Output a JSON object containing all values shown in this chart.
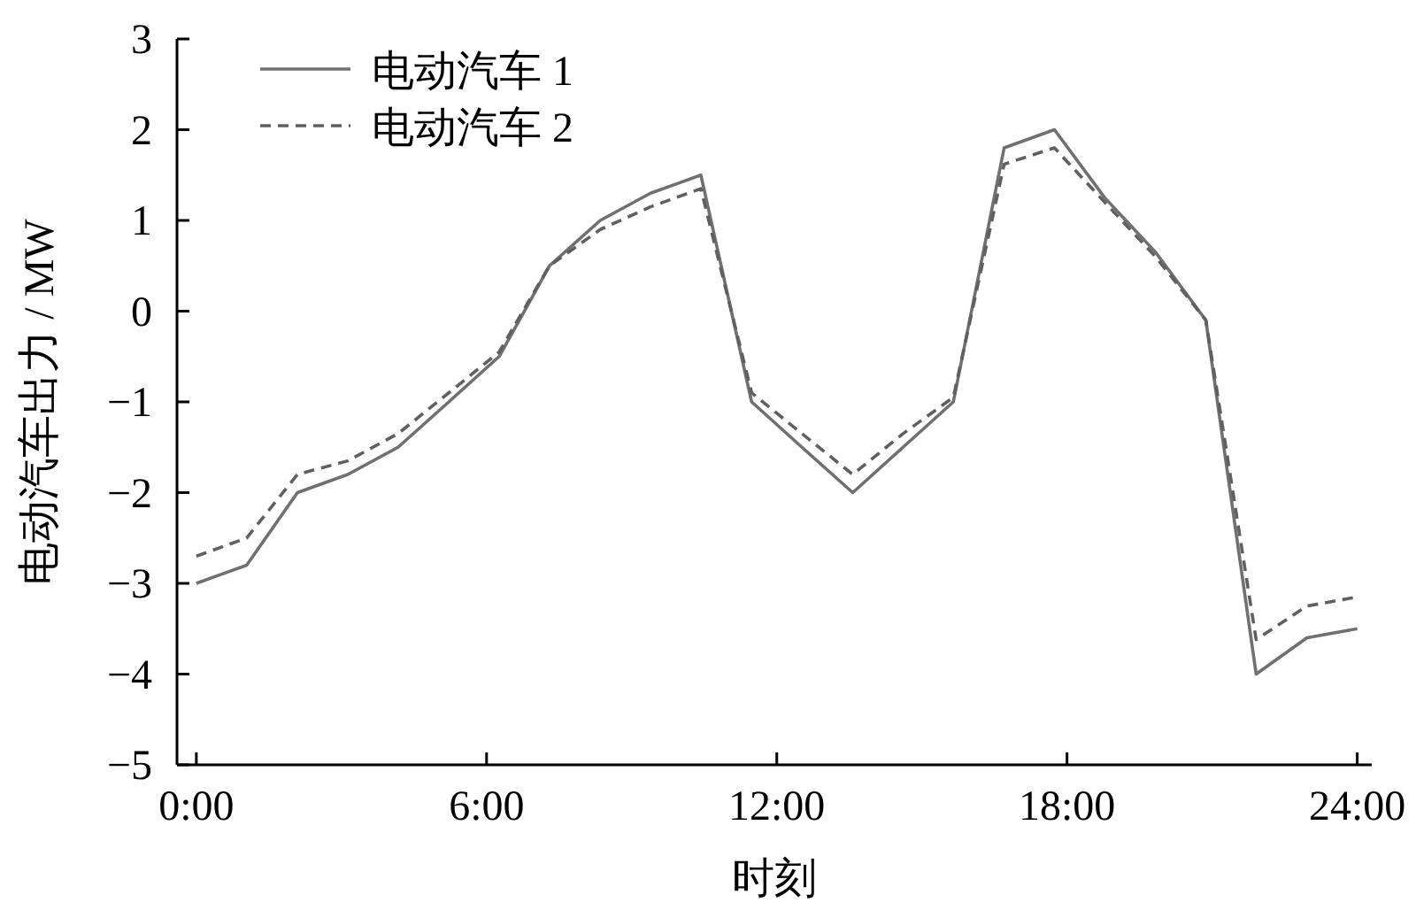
{
  "chart_data": {
    "type": "line",
    "xlabel": "时刻",
    "ylabel": "电动汽车出力 / MW",
    "x": [
      0,
      1.04,
      2.09,
      3.13,
      4.17,
      5.22,
      6.26,
      7.3,
      8.35,
      9.39,
      10.43,
      11.48,
      12.52,
      13.57,
      14.61,
      15.65,
      16.7,
      17.74,
      18.78,
      19.83,
      20.87,
      21.91,
      22.96,
      24
    ],
    "series": [
      {
        "name": "电动汽车 1",
        "color": "#707070",
        "line_style": "solid",
        "values": [
          -3.0,
          -2.8,
          -2.0,
          -1.8,
          -1.5,
          -1.0,
          -0.5,
          0.5,
          1.0,
          1.3,
          1.5,
          -1.0,
          -1.5,
          -2.0,
          -1.5,
          -1.0,
          1.8,
          2.0,
          1.25,
          0.65,
          -0.1,
          -4.0,
          -3.6,
          -3.5
        ]
      },
      {
        "name": "电动汽车 2",
        "color": "#606060",
        "line_style": "dashed",
        "values": [
          -2.7,
          -2.5,
          -1.8,
          -1.65,
          -1.35,
          -0.9,
          -0.45,
          0.5,
          0.9,
          1.15,
          1.35,
          -0.9,
          -1.35,
          -1.8,
          -1.35,
          -0.95,
          1.62,
          1.8,
          1.2,
          0.6,
          -0.1,
          -3.62,
          -3.25,
          -3.15
        ]
      }
    ],
    "xlim": [
      -0.4,
      24.3
    ],
    "ylim": [
      -5,
      3
    ],
    "xticks": [
      {
        "value": 0,
        "label": "0:00"
      },
      {
        "value": 6,
        "label": "6:00"
      },
      {
        "value": 12,
        "label": "12:00"
      },
      {
        "value": 18,
        "label": "18:00"
      },
      {
        "value": 24,
        "label": "24:00"
      }
    ],
    "yticks": [
      -5,
      -4,
      -3,
      -2,
      -1,
      0,
      1,
      2,
      3
    ],
    "grid": false,
    "legend": "top left",
    "marker": "none"
  }
}
